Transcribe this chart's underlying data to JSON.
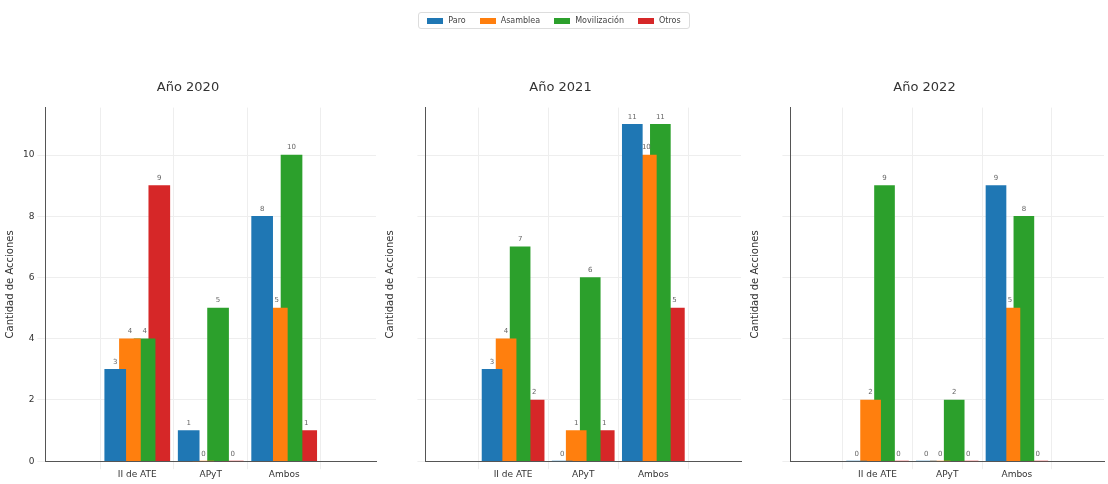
{
  "chart_data": [
    {
      "type": "bar",
      "title": "Año 2020",
      "ylabel": "Cantidad de Acciones",
      "categories": [
        "II de ATE",
        "APyT",
        "Ambos"
      ],
      "ylim": [
        0,
        11.55
      ],
      "yticks": [
        0,
        2,
        4,
        6,
        8,
        10
      ],
      "grid": true,
      "legend": "top",
      "data_labels": true,
      "series": [
        {
          "name": "Paro",
          "color": "#1f77b4",
          "values": [
            3,
            1,
            8
          ]
        },
        {
          "name": "Asamblea",
          "color": "#ff7f0e",
          "values": [
            4,
            0,
            5
          ]
        },
        {
          "name": "Movilización",
          "color": "#2ca02c",
          "values": [
            4,
            5,
            10
          ]
        },
        {
          "name": "Otros",
          "color": "#d62728",
          "values": [
            9,
            0,
            1
          ]
        }
      ]
    },
    {
      "type": "bar",
      "title": "Año 2021",
      "ylabel": "Cantidad de Acciones",
      "categories": [
        "II de ATE",
        "APyT",
        "Ambos"
      ],
      "ylim": [
        0,
        11.55
      ],
      "yticks": [
        0,
        2,
        4,
        6,
        8,
        10
      ],
      "grid": true,
      "tick_labels": "x",
      "data_labels": true,
      "series": [
        {
          "color": "#1f77b4",
          "values": [
            3,
            0,
            11
          ]
        },
        {
          "color": "#ff7f0e",
          "values": [
            4,
            1,
            10
          ]
        },
        {
          "color": "#2ca02c",
          "values": [
            7,
            6,
            11
          ]
        },
        {
          "color": "#d62728",
          "values": [
            2,
            1,
            5
          ]
        }
      ]
    },
    {
      "type": "bar",
      "title": "Año 2022",
      "ylabel": "Cantidad de Acciones",
      "categories": [
        "II de ATE",
        "APyT",
        "Ambos"
      ],
      "ylim": [
        0,
        11.55
      ],
      "yticks": [
        0,
        2,
        4,
        6,
        8,
        10
      ],
      "grid": true,
      "tick_labels": "x",
      "data_labels": true,
      "series": [
        {
          "color": "#1f77b4",
          "values": [
            0,
            0,
            9
          ]
        },
        {
          "color": "#ff7f0e",
          "values": [
            2,
            0,
            5
          ]
        },
        {
          "color": "#2ca02c",
          "values": [
            9,
            2,
            8
          ]
        },
        {
          "color": "#d62728",
          "values": [
            0,
            0,
            0
          ]
        }
      ]
    }
  ]
}
